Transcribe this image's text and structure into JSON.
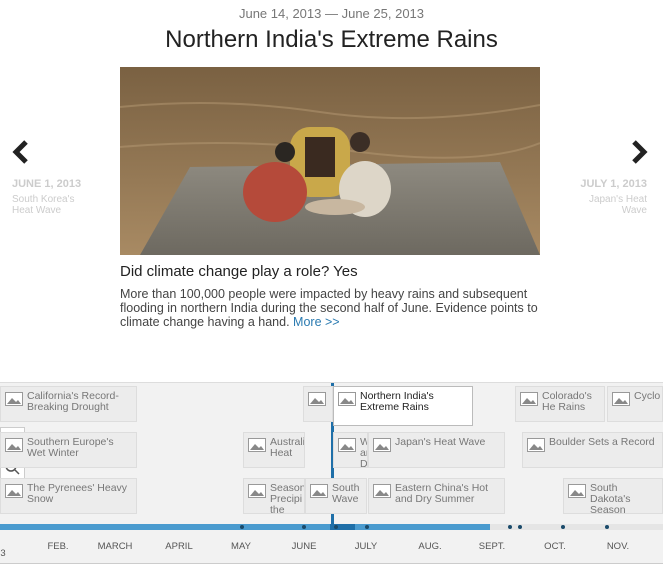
{
  "header": {
    "date_range": "June 14, 2013 — June 25, 2013",
    "title": "Northern India's Extreme Rains"
  },
  "previous": {
    "date": "JUNE 1, 2013",
    "label": "South Korea's Heat Wave"
  },
  "next": {
    "date": "JULY 1, 2013",
    "label": "Japan's Heat Wave"
  },
  "story": {
    "question": "Did climate change play a role? Yes",
    "body": "More than 100,000 people were impacted by heavy rains and subsequent flooding in northern India during the second half of June. Evidence points to climate change having a hand.",
    "more": "More >>"
  },
  "timeline": {
    "events": [
      "California's Record-Breaking Drought",
      "",
      "Northern India's Extreme Rains",
      "Colorado's He Rains",
      "Cyclo",
      "Southern Europe's Wet Winter",
      "Australi Heat",
      "Weste and Dr",
      "Japan's Heat Wave",
      "Boulder Sets a Record",
      "The Pyrenees' Heavy Snow",
      "Season Precipi the U.S",
      "South Wave",
      "Eastern China's Hot and Dry Summer",
      "South Dakota's Season Blizzar"
    ],
    "months": [
      "FEB.",
      "MARCH",
      "APRIL",
      "MAY",
      "JUNE",
      "JULY",
      "AUG.",
      "SEPT.",
      "OCT.",
      "NOV."
    ],
    "year_fragment": "3"
  }
}
